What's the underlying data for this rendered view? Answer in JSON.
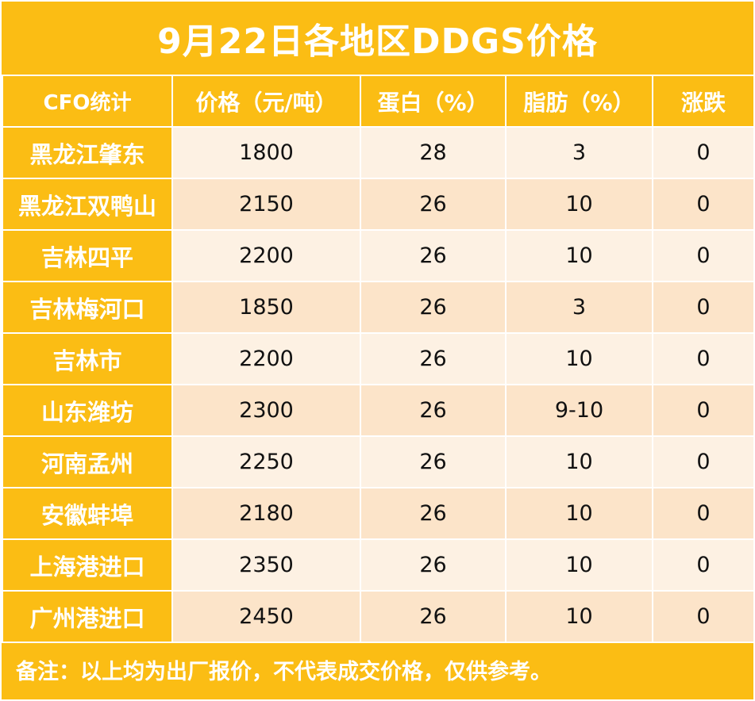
{
  "title": "9月22日各地区DDGS价格",
  "headers": [
    "CFO统计",
    "价格（元/吨）",
    "蛋白（%）",
    "脂肪（%）",
    "涨跌"
  ],
  "rows": [
    {
      "region": "黑龙江肇东",
      "price": "1800",
      "protein": "28",
      "fat": "3",
      "change": "0"
    },
    {
      "region": "黑龙江双鸭山",
      "price": "2150",
      "protein": "26",
      "fat": "10",
      "change": "0"
    },
    {
      "region": "吉林四平",
      "price": "2200",
      "protein": "26",
      "fat": "10",
      "change": "0"
    },
    {
      "region": "吉林梅河口",
      "price": "1850",
      "protein": "26",
      "fat": "3",
      "change": "0"
    },
    {
      "region": "吉林市",
      "price": "2200",
      "protein": "26",
      "fat": "10",
      "change": "0"
    },
    {
      "region": "山东潍坊",
      "price": "2300",
      "protein": "26",
      "fat": "9-10",
      "change": "0"
    },
    {
      "region": "河南孟州",
      "price": "2250",
      "protein": "26",
      "fat": "10",
      "change": "0"
    },
    {
      "region": "安徽蚌埠",
      "price": "2180",
      "protein": "26",
      "fat": "10",
      "change": "0"
    },
    {
      "region": "上海港进口",
      "price": "2350",
      "protein": "26",
      "fat": "10",
      "change": "0"
    },
    {
      "region": "广州港进口",
      "price": "2450",
      "protein": "26",
      "fat": "10",
      "change": "0"
    }
  ],
  "note": "备注：以上均为出厂报价，不代表成交价格，仅供参考。",
  "colors": {
    "accent": "#fbbd14",
    "row_light": "#fdf1e3",
    "row_dark": "#fce4c9"
  }
}
